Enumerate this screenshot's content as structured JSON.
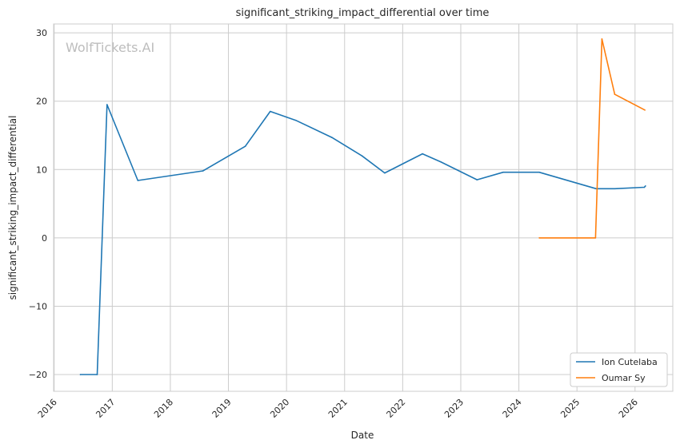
{
  "chart_data": {
    "type": "line",
    "title": "significant_striking_impact_differential over time",
    "xlabel": "Date",
    "ylabel": "significant_striking_impact_differential",
    "watermark": "WolfTickets.AI",
    "xlim": [
      2015.99,
      2026.65
    ],
    "ylim": [
      -22.45,
      31.3
    ],
    "xticks": [
      2016,
      2017,
      2018,
      2019,
      2020,
      2021,
      2022,
      2023,
      2024,
      2025,
      2026
    ],
    "xtick_labels": [
      "2016",
      "2017",
      "2018",
      "2019",
      "2020",
      "2021",
      "2022",
      "2023",
      "2024",
      "2025",
      "2026"
    ],
    "yticks": [
      -20,
      -10,
      0,
      10,
      20,
      30
    ],
    "ytick_labels": [
      "−20",
      "−10",
      "0",
      "10",
      "20",
      "30"
    ],
    "grid": true,
    "legend_position": "lower-right",
    "series": [
      {
        "name": "Ion Cutelaba",
        "color": "#1f77b4",
        "x": [
          2016.45,
          2016.74,
          2016.91,
          2017.44,
          2018.56,
          2019.29,
          2019.72,
          2020.16,
          2020.78,
          2021.3,
          2021.69,
          2022.34,
          2022.66,
          2023.28,
          2023.73,
          2024.35,
          2025.33,
          2025.65,
          2026.16,
          2026.18
        ],
        "y": [
          -20,
          -20,
          19.5,
          8.4,
          9.8,
          13.4,
          18.5,
          17.2,
          14.7,
          12.0,
          9.5,
          12.3,
          11.1,
          8.5,
          9.6,
          9.6,
          7.2,
          7.2,
          7.4,
          7.6
        ]
      },
      {
        "name": "Oumar Sy",
        "color": "#ff7f0e",
        "x": [
          2024.35,
          2025.32,
          2025.43,
          2025.65,
          2026.17
        ],
        "y": [
          0,
          0,
          29.1,
          21.0,
          18.7
        ]
      }
    ]
  }
}
